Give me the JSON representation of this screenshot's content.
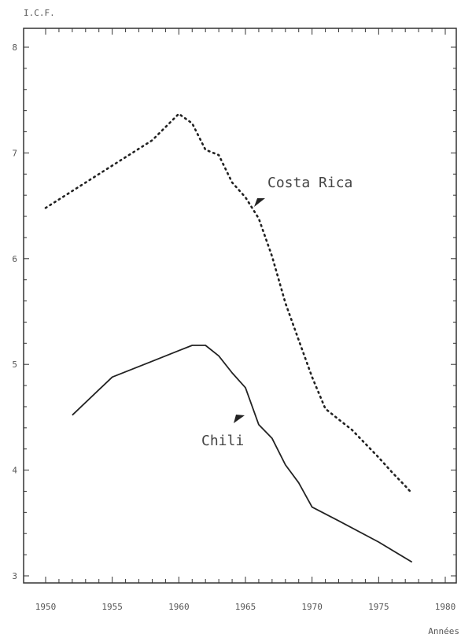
{
  "chart_data": {
    "type": "line",
    "ylabel": "I.C.F.",
    "xlabel": "Années",
    "xlim": [
      1950,
      1980
    ],
    "ylim": [
      3,
      8
    ],
    "x_ticks": [
      1950,
      1955,
      1960,
      1965,
      1970,
      1975,
      1980
    ],
    "y_ticks": [
      3,
      4,
      5,
      6,
      7,
      8
    ],
    "x_tick_labels": [
      "1950",
      "1955",
      "1960",
      "1965",
      "1970",
      "1975",
      "1980"
    ],
    "y_tick_labels": [
      "3",
      "4",
      "5",
      "6",
      "7",
      "8"
    ],
    "grid": false,
    "series": [
      {
        "name": "Costa Rica",
        "style": "dotted",
        "color": "#222222",
        "x": [
          1950,
          1955,
          1958,
          1960,
          1961,
          1962,
          1963,
          1964,
          1965,
          1966,
          1967,
          1968,
          1969,
          1970,
          1971,
          1972,
          1973,
          1974,
          1975,
          1976,
          1977,
          1977.5
        ],
        "y": [
          6.48,
          6.88,
          7.12,
          7.37,
          7.28,
          7.03,
          6.98,
          6.72,
          6.58,
          6.38,
          6.02,
          5.58,
          5.23,
          4.88,
          4.58,
          4.48,
          4.38,
          4.25,
          4.12,
          3.98,
          3.85,
          3.78
        ]
      },
      {
        "name": "Chili",
        "style": "solid",
        "color": "#222222",
        "x": [
          1952,
          1955,
          1958,
          1960,
          1961,
          1962,
          1963,
          1964,
          1965,
          1966,
          1967,
          1968,
          1969,
          1970,
          1972,
          1975,
          1977.5
        ],
        "y": [
          4.52,
          4.88,
          5.03,
          5.13,
          5.18,
          5.18,
          5.08,
          4.92,
          4.78,
          4.43,
          4.3,
          4.05,
          3.88,
          3.65,
          3.52,
          3.32,
          3.13
        ]
      }
    ],
    "annotations": [
      {
        "text": "Costa Rica",
        "series": "Costa Rica"
      },
      {
        "text": "Chili",
        "series": "Chili"
      }
    ]
  }
}
